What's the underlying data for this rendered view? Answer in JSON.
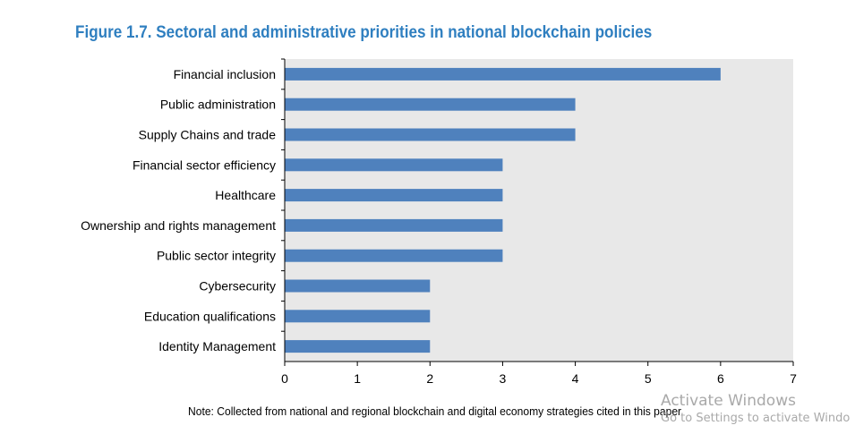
{
  "title": "Figure 1.7. Sectoral and administrative priorities in national blockchain policies",
  "note": "Note: Collected from national and regional blockchain and digital economy strategies cited in this paper",
  "watermark": {
    "line1": "Activate Windows",
    "line2": "Go to Settings to activate Windo"
  },
  "colors": {
    "bar": "#4f81bd",
    "plot_bg": "#e8e8e8",
    "title": "#2f7fc0"
  },
  "chart_data": {
    "type": "bar",
    "orientation": "horizontal",
    "categories": [
      "Financial inclusion",
      "Public administration",
      "Supply Chains and trade",
      "Financial sector efficiency",
      "Healthcare",
      "Ownership and rights management",
      "Public sector integrity",
      "Cybersecurity",
      "Education qualifications",
      "Identity Management"
    ],
    "values": [
      6,
      4,
      4,
      3,
      3,
      3,
      3,
      2,
      2,
      2
    ],
    "xlim": [
      0,
      7
    ],
    "xticks": [
      0,
      1,
      2,
      3,
      4,
      5,
      6,
      7
    ],
    "grid": false,
    "legend": "none"
  }
}
